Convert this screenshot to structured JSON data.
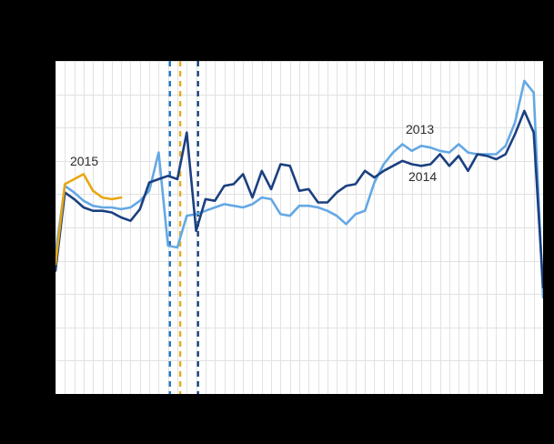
{
  "chart_data": {
    "type": "line",
    "title": "",
    "xlabel": "",
    "ylabel": "",
    "x_unit": "week",
    "x_range": [
      1,
      53
    ],
    "ylim": [
      0,
      10
    ],
    "grid": true,
    "grid_note": "10 horizontal divisions, 52 vertical divisions (weekly); axis tick labels not visible against black background",
    "background_color": "#000000",
    "panel_color": "#ffffff",
    "gridline_color": "#e2e2e2",
    "legend_position": "inline-labels",
    "series": [
      {
        "name": "2013",
        "color": "#64a8e4",
        "values": [
          4.2,
          6.25,
          6.05,
          5.8,
          5.65,
          5.6,
          5.6,
          5.55,
          5.6,
          5.8,
          6.1,
          7.25,
          4.45,
          4.4,
          5.35,
          5.4,
          5.5,
          5.6,
          5.7,
          5.65,
          5.6,
          5.7,
          5.9,
          5.85,
          5.4,
          5.35,
          5.65,
          5.65,
          5.6,
          5.5,
          5.35,
          5.1,
          5.4,
          5.5,
          6.35,
          6.9,
          7.25,
          7.5,
          7.3,
          7.45,
          7.4,
          7.3,
          7.25,
          7.5,
          7.25,
          7.2,
          7.2,
          7.2,
          7.45,
          8.15,
          9.4,
          9.05,
          2.9
        ]
      },
      {
        "name": "2014",
        "color": "#1b4080",
        "values": [
          3.7,
          6.05,
          5.85,
          5.6,
          5.5,
          5.5,
          5.45,
          5.3,
          5.2,
          5.55,
          6.35,
          6.45,
          6.55,
          6.45,
          7.85,
          4.9,
          5.85,
          5.8,
          6.25,
          6.3,
          6.6,
          5.9,
          6.7,
          6.15,
          6.9,
          6.85,
          6.1,
          6.15,
          5.75,
          5.75,
          6.05,
          6.25,
          6.3,
          6.7,
          6.5,
          6.7,
          6.85,
          7.0,
          6.9,
          6.85,
          6.9,
          7.2,
          6.85,
          7.15,
          6.7,
          7.2,
          7.15,
          7.05,
          7.2,
          7.8,
          8.5,
          7.85,
          3.2
        ]
      },
      {
        "name": "2015",
        "color": "#e8a713",
        "values": [
          3.9,
          6.3,
          6.45,
          6.6,
          6.1,
          5.9,
          5.85,
          5.9
        ]
      }
    ],
    "vertical_markers": [
      {
        "name": "easter-2013",
        "week": 13.2,
        "color": "#1d74c8",
        "style": "dashed"
      },
      {
        "name": "easter-2015",
        "week": 14.3,
        "color": "#e3ac1e",
        "style": "dashed"
      },
      {
        "name": "easter-2014",
        "week": 16.2,
        "color": "#16407e",
        "style": "dashed"
      }
    ],
    "annotations": [
      {
        "text": "2015"
      },
      {
        "text": "2013"
      },
      {
        "text": "2014"
      }
    ]
  }
}
